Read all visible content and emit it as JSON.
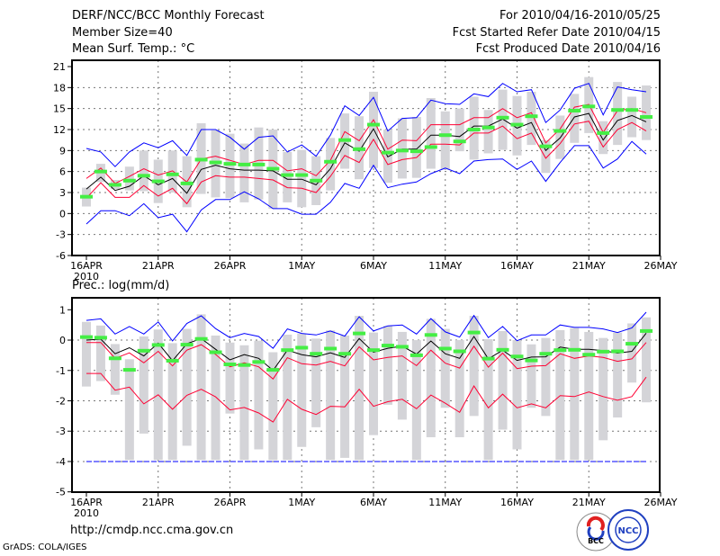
{
  "header": {
    "title": "DERF/NCC/BCC Monthly Forecast",
    "member_size": "Member Size=40",
    "variable": "Mean Surf. Temp.: °C",
    "period": "For 2010/04/16-2010/05/25",
    "started": "Fcst Started Refer Date 2010/04/15",
    "produced": "Fcst Produced Date 2010/04/16"
  },
  "footer": {
    "url": "http://cmdp.ncc.cma.gov.cn",
    "grads": "GrADS: COLA/IGES",
    "logo_bcc": "BCC",
    "logo_ncc": "NCC"
  },
  "colors": {
    "max_min": "#0000ff",
    "spread": "#ff0033",
    "mean": "#000000",
    "obs": "#44ee44",
    "range": "#d4d4d8"
  },
  "chart_data": [
    {
      "type": "line",
      "title": "Mean Surf. Temp.: °C",
      "xlabel": "",
      "ylabel": "",
      "ylim": [
        -6,
        21
      ],
      "yticks": [
        "-6",
        "-3",
        "0",
        "3",
        "6",
        "9",
        "12",
        "15",
        "18",
        "21"
      ],
      "xticks": [
        "16APR",
        "21APR",
        "26APR",
        "1MAY",
        "6MAY",
        "11MAY",
        "16MAY",
        "21MAY",
        "26MAY"
      ],
      "xtick_year": "2010",
      "grid": true,
      "days": 40,
      "series": [
        {
          "name": "max",
          "values": [
            9.3,
            8.8,
            6.7,
            8.8,
            10.1,
            9.4,
            10.4,
            8.3,
            12,
            12,
            10.9,
            9.2,
            10.9,
            11.1,
            8.8,
            9.8,
            8.2,
            11.2,
            15.4,
            14,
            16.6,
            11.8,
            13.6,
            13.7,
            16.2,
            15.7,
            15.6,
            17.1,
            16.7,
            18.6,
            17.4,
            17.7,
            13,
            14.8,
            17.9,
            18.6,
            14.1,
            18.1,
            17.7,
            17.4
          ]
        },
        {
          "name": "min",
          "values": [
            -1.5,
            0.4,
            0.4,
            -0.3,
            1.4,
            -0.6,
            -0.1,
            -2.6,
            0.5,
            2,
            2,
            3.1,
            2.1,
            0.7,
            0.7,
            -0.1,
            -0.1,
            1.6,
            4.3,
            3.6,
            6.9,
            3.7,
            4.2,
            4.5,
            5.7,
            6.5,
            5.7,
            7.5,
            7.7,
            7.8,
            6.3,
            7.5,
            4.6,
            7.3,
            9.7,
            9.7,
            6.5,
            7.8,
            10.3,
            8.5
          ]
        },
        {
          "name": "upper",
          "values": [
            5,
            6.5,
            4.3,
            5.3,
            6.4,
            5.5,
            6.1,
            4.5,
            7.8,
            8.2,
            7.6,
            7,
            7.6,
            7.6,
            6.1,
            6.4,
            5.4,
            7.6,
            11.7,
            10.4,
            13.4,
            9.2,
            10.5,
            10.4,
            12.7,
            12.7,
            12.7,
            13.7,
            13.7,
            15,
            13.7,
            14.4,
            10.1,
            12.1,
            15.2,
            15.6,
            11.6,
            14.7,
            15,
            14.4
          ]
        },
        {
          "name": "lower",
          "values": [
            2.2,
            4.4,
            2.3,
            2.3,
            4,
            2.5,
            3.6,
            1.4,
            4.5,
            5.4,
            5.2,
            5.2,
            5,
            4.8,
            3.7,
            3.6,
            3,
            5.3,
            8.3,
            7.3,
            10.6,
            7,
            7.7,
            8,
            9.9,
            9.9,
            9.8,
            11.5,
            11.5,
            12.5,
            10.7,
            11.5,
            7.9,
            10,
            12.8,
            13.2,
            9.5,
            12,
            13,
            11.8
          ]
        },
        {
          "name": "mean",
          "values": [
            3.5,
            5.2,
            3.3,
            3.9,
            5.4,
            4.1,
            5,
            2.9,
            6.3,
            6.9,
            6.4,
            6.2,
            6.2,
            6.1,
            4.9,
            4.9,
            4.1,
            6.4,
            10.1,
            8.9,
            12.1,
            8.1,
            9.2,
            9.2,
            11.2,
            11.2,
            11,
            12.5,
            12.5,
            13.5,
            12.2,
            13,
            9,
            10.8,
            13.8,
            14.3,
            10.5,
            13.3,
            14,
            13.1
          ]
        },
        {
          "name": "obs",
          "values": [
            2.4,
            6,
            4.1,
            4.7,
            5.4,
            4.6,
            5.6,
            4.3,
            7.7,
            7.3,
            7.1,
            7,
            7,
            6.4,
            5.5,
            5.5,
            4.7,
            7.4,
            10.5,
            9.2,
            12.7,
            8.7,
            9,
            8.9,
            9.5,
            11.2,
            10.3,
            12,
            12.3,
            13.7,
            12.7,
            13.9,
            9.6,
            11.8,
            14.7,
            15.3,
            11.5,
            14.8,
            14.8,
            13.8
          ]
        }
      ],
      "range_low": [
        1,
        4.5,
        3.5,
        3.3,
        3.2,
        1.5,
        3,
        0.9,
        2.8,
        2.3,
        2.2,
        1.6,
        2,
        0.7,
        1.6,
        0.9,
        1.2,
        3.3,
        6.4,
        4.9,
        6.5,
        4.4,
        5,
        5.1,
        6.4,
        6.3,
        8.9,
        7.7,
        8.6,
        9.1,
        8.3,
        9.8,
        5.8,
        7.8,
        10.1,
        11.5,
        8.5,
        9.8,
        10.9,
        10.5
      ],
      "range_high": [
        3.7,
        7.1,
        4.8,
        6.7,
        9,
        7.7,
        9,
        8.2,
        12.9,
        11.9,
        11.4,
        10,
        12.3,
        12,
        8.8,
        9.1,
        8.2,
        10.8,
        14.3,
        13.9,
        17.4,
        12,
        13.6,
        13.8,
        16.5,
        14.6,
        15,
        16.7,
        14.8,
        17.7,
        16.8,
        17.4,
        10.5,
        14,
        17.1,
        19.5,
        13.2,
        18.8,
        16.7,
        18.3
      ]
    },
    {
      "type": "line",
      "title": "Prec.: log(mm/d)",
      "xlabel": "",
      "ylabel": "",
      "ylim": [
        -5,
        1
      ],
      "yticks": [
        "-5",
        "-4",
        "-3",
        "-2",
        "-1",
        "0",
        "1"
      ],
      "xticks": [
        "16APR",
        "21APR",
        "26APR",
        "1MAY",
        "6MAY",
        "11MAY",
        "16MAY",
        "21MAY",
        "26MAY"
      ],
      "xtick_year": "2010",
      "grid": true,
      "days": 40,
      "series": [
        {
          "name": "max",
          "values": [
            0.65,
            0.7,
            0.2,
            0.45,
            0.2,
            0.6,
            -0.03,
            0.55,
            0.8,
            0.38,
            0.08,
            0.22,
            0.12,
            -0.27,
            0.37,
            0.22,
            0.17,
            0.3,
            0.13,
            0.77,
            0.3,
            0.47,
            0.5,
            0.2,
            0.71,
            0.27,
            0.1,
            0.81,
            0.08,
            0.45,
            -0.02,
            0.17,
            0.17,
            0.5,
            0.42,
            0.42,
            0.37,
            0.25,
            0.4,
            0.92
          ]
        },
        {
          "name": "min",
          "values": [
            -4,
            -4,
            -4,
            -4,
            -4,
            -4,
            -4,
            -4,
            -4,
            -4,
            -4,
            -4,
            -4,
            -4,
            -4,
            -4,
            -4,
            -4,
            -4,
            -4,
            -4,
            -4,
            -4,
            -4,
            -4,
            -4,
            -4,
            -4,
            -4,
            -4,
            -4,
            -4,
            -4,
            -4,
            -4,
            -4,
            -4,
            -4,
            -4,
            -4
          ]
        },
        {
          "name": "upper",
          "values": [
            -0.08,
            -0.08,
            -0.6,
            -0.42,
            -0.75,
            -0.37,
            -0.85,
            -0.33,
            -0.15,
            -0.47,
            -0.88,
            -0.75,
            -0.88,
            -1.28,
            -0.58,
            -0.78,
            -0.82,
            -0.7,
            -0.85,
            -0.22,
            -0.65,
            -0.57,
            -0.52,
            -0.84,
            -0.33,
            -0.76,
            -0.92,
            -0.2,
            -0.89,
            -0.43,
            -0.94,
            -0.86,
            -0.84,
            -0.45,
            -0.6,
            -0.52,
            -0.57,
            -0.7,
            -0.62,
            -0.08
          ]
        },
        {
          "name": "lower",
          "values": [
            -1.1,
            -1.1,
            -1.65,
            -1.55,
            -2.1,
            -1.8,
            -2.28,
            -1.82,
            -1.62,
            -1.87,
            -2.3,
            -2.22,
            -2.4,
            -2.7,
            -1.95,
            -2.28,
            -2.45,
            -2.18,
            -2.2,
            -1.62,
            -2.18,
            -2.03,
            -1.95,
            -2.26,
            -1.81,
            -2.08,
            -2.38,
            -1.51,
            -2.23,
            -1.78,
            -2.23,
            -2.1,
            -2.23,
            -1.83,
            -1.86,
            -1.71,
            -1.86,
            -1.98,
            -1.86,
            -1.22
          ]
        },
        {
          "name": "mean",
          "values": [
            0,
            0.03,
            -0.45,
            -0.25,
            -0.52,
            -0.1,
            -0.68,
            -0.12,
            0.05,
            -0.3,
            -0.65,
            -0.48,
            -0.6,
            -1,
            -0.33,
            -0.48,
            -0.55,
            -0.42,
            -0.57,
            0.05,
            -0.4,
            -0.27,
            -0.2,
            -0.46,
            -0.03,
            -0.45,
            -0.6,
            0.12,
            -0.62,
            -0.33,
            -0.67,
            -0.56,
            -0.55,
            -0.23,
            -0.3,
            -0.3,
            -0.35,
            -0.43,
            -0.37,
            0.23
          ]
        },
        {
          "name": "obs",
          "values": [
            0.1,
            0.08,
            -0.6,
            -0.98,
            -0.35,
            -0.16,
            -0.68,
            -0.15,
            0.04,
            -0.4,
            -0.8,
            -0.82,
            -0.72,
            -0.98,
            -0.33,
            -0.25,
            -0.45,
            -0.28,
            -0.45,
            0.22,
            -0.33,
            -0.18,
            -0.22,
            -0.5,
            0.17,
            -0.28,
            -0.37,
            0.25,
            -0.61,
            -0.32,
            -0.54,
            -0.67,
            -0.45,
            -0.33,
            -0.32,
            -0.48,
            -0.38,
            -0.37,
            -0.12,
            0.3
          ]
        }
      ],
      "range_low": [
        -1.53,
        -1.35,
        -1.8,
        -3.95,
        -3.08,
        -3.95,
        -3.95,
        -3.48,
        -3.95,
        -3.95,
        -2.42,
        -3.95,
        -3.6,
        -3.95,
        -3.95,
        -3.52,
        -2.87,
        -3.95,
        -3.88,
        -3.95,
        -3.13,
        -2.13,
        -2.62,
        -3.95,
        -3.2,
        -2.23,
        -3.2,
        -2.5,
        -3.95,
        -2.95,
        -3.6,
        -2.23,
        -2.5,
        -3.95,
        -3.95,
        -3.95,
        -3.3,
        -2.55,
        -1.4,
        -2.05
      ],
      "range_high": [
        0.6,
        0.48,
        -0.13,
        -0.63,
        0.12,
        0.35,
        -0.1,
        0.37,
        0.85,
        0.15,
        -0.08,
        -0.17,
        -0.02,
        -0.4,
        0.18,
        0.22,
        0.05,
        0.32,
        0.15,
        0.8,
        0.25,
        0.47,
        0.27,
        0,
        0.7,
        0.37,
        0,
        0.8,
        0.03,
        0.3,
        0,
        -0.14,
        0.07,
        0.33,
        0.4,
        0.27,
        0.07,
        0.25,
        0.55,
        0.75
      ]
    }
  ]
}
